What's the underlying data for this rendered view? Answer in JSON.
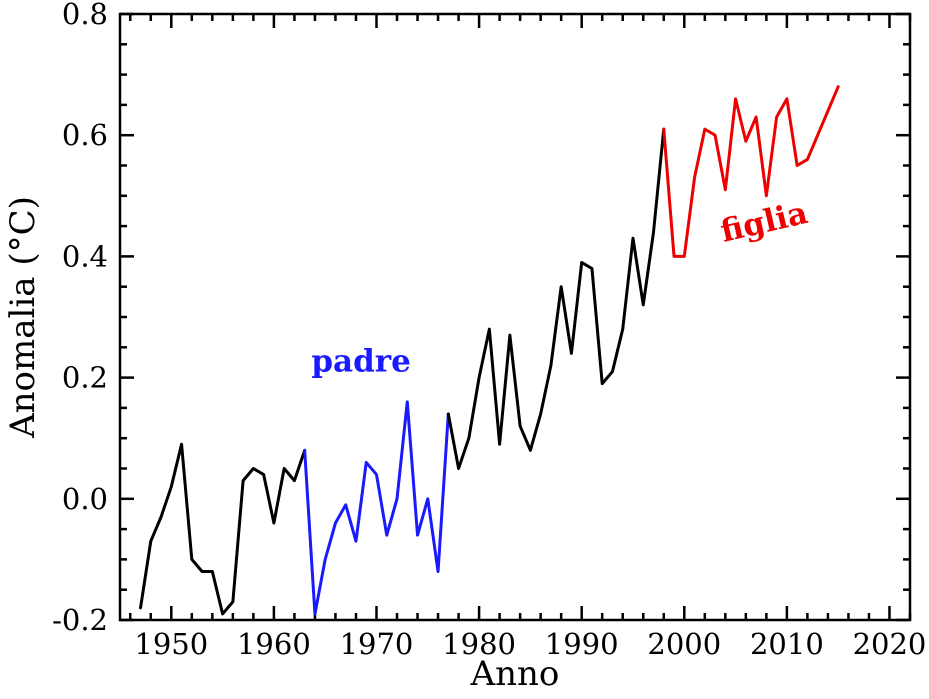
{
  "chart_data": {
    "type": "line",
    "title": "",
    "xlabel": "Anno",
    "ylabel": "Anomalia (°C)",
    "xlim": [
      1945,
      2022
    ],
    "ylim": [
      -0.2,
      0.8
    ],
    "x_ticks": [
      1950,
      1960,
      1970,
      1980,
      1990,
      2000,
      2010,
      2020
    ],
    "x_tick_labels": [
      "1950",
      "1960",
      "1970",
      "1980",
      "1990",
      "2000",
      "2010",
      "2020"
    ],
    "y_ticks": [
      -0.2,
      0.0,
      0.2,
      0.4,
      0.6,
      0.8
    ],
    "y_tick_labels": [
      "-0.2",
      "0.0",
      "0.2",
      "0.4",
      "0.6",
      "0.8"
    ],
    "x_minor_step": 2,
    "y_minor_step": 0.05,
    "grid": false,
    "frame": "box-with-inward-ticks",
    "legend_position": "none",
    "x": [
      1947,
      1948,
      1949,
      1950,
      1951,
      1952,
      1953,
      1954,
      1955,
      1956,
      1957,
      1958,
      1959,
      1960,
      1961,
      1962,
      1963,
      1964,
      1965,
      1966,
      1967,
      1968,
      1969,
      1970,
      1971,
      1972,
      1973,
      1974,
      1975,
      1976,
      1977,
      1978,
      1979,
      1980,
      1981,
      1982,
      1983,
      1984,
      1985,
      1986,
      1987,
      1988,
      1989,
      1990,
      1991,
      1992,
      1993,
      1994,
      1995,
      1996,
      1997,
      1998,
      1999,
      2000,
      2001,
      2002,
      2003,
      2004,
      2005,
      2006,
      2007,
      2008,
      2009,
      2010,
      2011,
      2012,
      2013,
      2014,
      2015
    ],
    "series": [
      {
        "name": "anomalia-temperatura",
        "values": [
          -0.18,
          -0.07,
          -0.03,
          0.02,
          0.09,
          -0.1,
          -0.12,
          -0.12,
          -0.19,
          -0.17,
          0.03,
          0.05,
          0.04,
          -0.04,
          0.05,
          0.03,
          0.08,
          -0.19,
          -0.1,
          -0.04,
          -0.01,
          -0.07,
          0.06,
          0.04,
          -0.06,
          0.0,
          0.16,
          -0.06,
          0.0,
          -0.12,
          0.14,
          0.05,
          0.1,
          0.2,
          0.28,
          0.09,
          0.27,
          0.12,
          0.08,
          0.14,
          0.22,
          0.35,
          0.24,
          0.39,
          0.38,
          0.19,
          0.21,
          0.28,
          0.43,
          0.32,
          0.44,
          0.61,
          0.4,
          0.4,
          0.53,
          0.61,
          0.6,
          0.51,
          0.66,
          0.59,
          0.63,
          0.5,
          0.63,
          0.66,
          0.55,
          0.56,
          0.6,
          0.64,
          0.68
        ]
      }
    ],
    "segments": [
      {
        "name": "storico-inizio",
        "color": "#000000",
        "from": 1947,
        "to": 1963
      },
      {
        "name": "padre",
        "color": "#1a1aff",
        "from": 1963,
        "to": 1977
      },
      {
        "name": "storico-mezzo",
        "color": "#000000",
        "from": 1977,
        "to": 1998
      },
      {
        "name": "figlia",
        "color": "#ee0000",
        "from": 1998,
        "to": 2015
      }
    ],
    "annotations": [
      {
        "text": "padre",
        "color": "#1a1aff",
        "x": 1968.5,
        "y": 0.21,
        "rotation": 0
      },
      {
        "text": "figlia",
        "color": "#ee0000",
        "x": 2008,
        "y": 0.44,
        "rotation": -13
      }
    ],
    "colors": {
      "axis": "#000000",
      "background": "#ffffff"
    },
    "line_width": 3
  }
}
